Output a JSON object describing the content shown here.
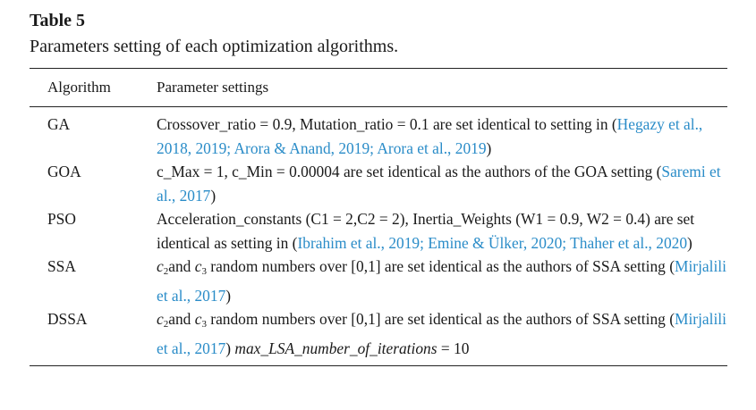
{
  "table": {
    "label": "Table 5",
    "caption": "Parameters setting of each optimization algorithms.",
    "headers": {
      "algorithm": "Algorithm",
      "parameters": "Parameter settings"
    },
    "rows": [
      {
        "algorithm": "GA",
        "text1": "Crossover_ratio = 0.9, Mutation_ratio = 0.1 are set identical to setting in (",
        "cite": "Hegazy et al., 2018, 2019; Arora & Anand, 2019; Arora et al., 2019",
        "text2": ")"
      },
      {
        "algorithm": "GOA",
        "text1": "c_Max = 1, c_Min = 0.00004 are set identical as the authors of the GOA setting (",
        "cite": "Saremi et al., 2017",
        "text2": ")"
      },
      {
        "algorithm": "PSO",
        "text1": "Acceleration_constants (C1 = 2,C2 = 2), Inertia_Weights (W1 = 0.9, W2 = 0.4) are set identical as setting in (",
        "cite": "Ibrahim et al., 2019; Emine & Ülker, 2020; Thaher et al., 2020",
        "text2": ")"
      },
      {
        "algorithm": "SSA",
        "c2": "c",
        "c2sub": "2",
        "and": "and ",
        "c3": "c",
        "c3sub": "3",
        "text1": " random numbers over [0,1] are set identical as the authors of SSA setting (",
        "cite": "Mirjalili et al., 2017",
        "text2": ")"
      },
      {
        "algorithm": "DSSA",
        "c2": "c",
        "c2sub": "2",
        "and": "and ",
        "c3": "c",
        "c3sub": "3",
        "text1": " random numbers over [0,1] are set identical as the authors of SSA setting (",
        "cite": "Mirjalili et al., 2017",
        "text2": ") ",
        "param": "max_LSA_number_of_iterations",
        "param_value": " = 10"
      }
    ]
  }
}
